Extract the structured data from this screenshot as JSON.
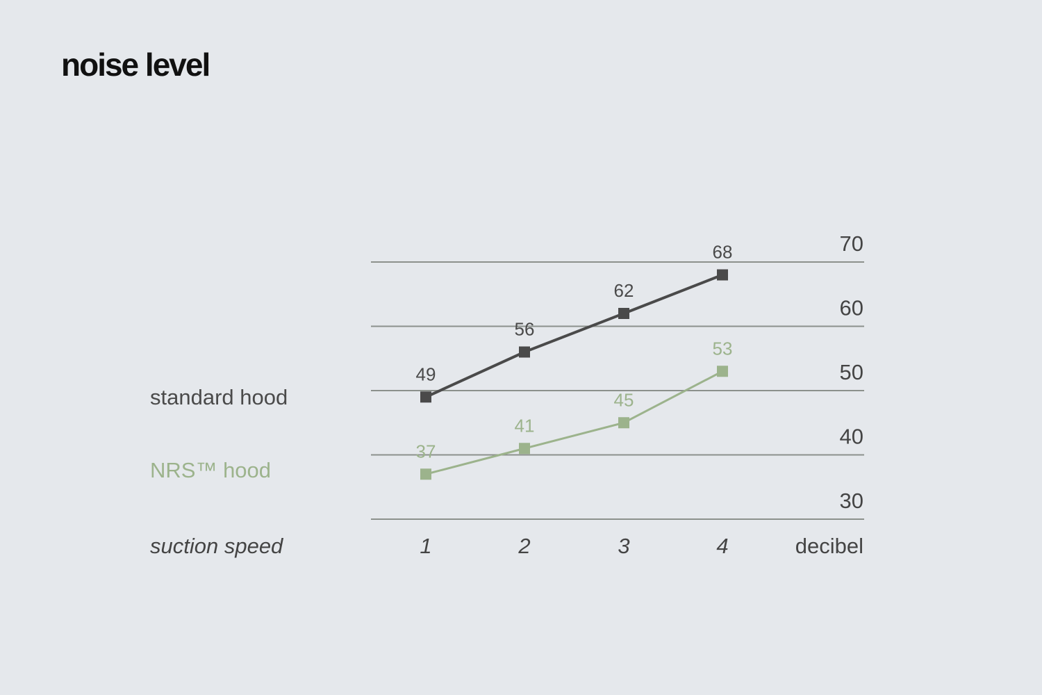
{
  "title": "noise level",
  "chart_data": {
    "type": "line",
    "title": "noise level",
    "xlabel": "suction speed",
    "ylabel": "decibel",
    "categories": [
      "1",
      "2",
      "3",
      "4"
    ],
    "ylim": [
      30,
      70
    ],
    "yticks": [
      30,
      40,
      50,
      60,
      70
    ],
    "grid": true,
    "legend": "left",
    "series": [
      {
        "name": "standard hood",
        "values": [
          49,
          56,
          62,
          68
        ],
        "color": "#4a4a4a"
      },
      {
        "name": "NRS™ hood",
        "values": [
          37,
          41,
          45,
          53
        ],
        "color": "#9cb38c"
      }
    ]
  }
}
